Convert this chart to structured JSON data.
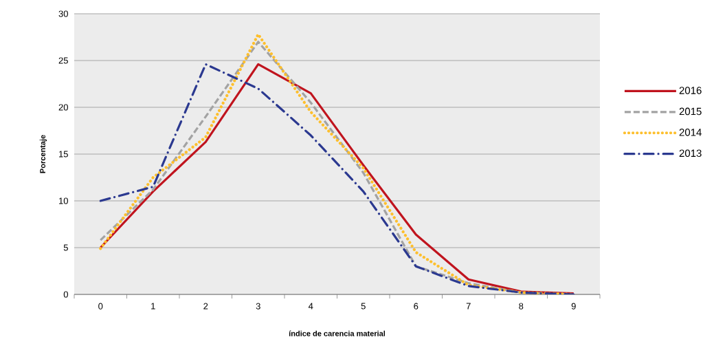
{
  "chart_data": {
    "type": "line",
    "xlabel": "índice de carencia material",
    "ylabel": "Porcentaje",
    "categories": [
      "0",
      "1",
      "2",
      "3",
      "4",
      "5",
      "6",
      "7",
      "8",
      "9"
    ],
    "series": [
      {
        "name": "2016",
        "color": "#c0141e",
        "line_style": "solid",
        "values": [
          5.0,
          11.0,
          16.3,
          24.6,
          21.5,
          13.8,
          6.4,
          1.6,
          0.3,
          0.1
        ]
      },
      {
        "name": "2015",
        "color": "#a3a3a3",
        "line_style": "dashed",
        "values": [
          5.8,
          11.2,
          19.0,
          27.0,
          20.5,
          13.0,
          3.0,
          1.2,
          0.2,
          0.0
        ]
      },
      {
        "name": "2014",
        "color": "#fdbf2d",
        "line_style": "dotted",
        "values": [
          4.9,
          12.5,
          16.8,
          27.8,
          19.5,
          13.5,
          4.5,
          1.0,
          0.2,
          0.0
        ]
      },
      {
        "name": "2013",
        "color": "#2b3990",
        "line_style": "dashdot",
        "values": [
          10.0,
          11.5,
          24.6,
          22.0,
          17.0,
          11.0,
          3.0,
          0.9,
          0.2,
          0.0
        ]
      }
    ],
    "ylim": [
      0,
      30
    ],
    "yticks": [
      0,
      5,
      10,
      15,
      20,
      25,
      30
    ],
    "grid": "y",
    "legend": "right",
    "marker": "none"
  }
}
